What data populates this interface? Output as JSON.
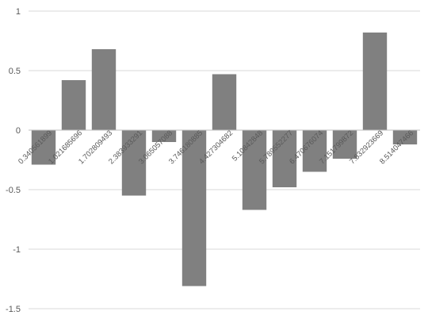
{
  "chart_data": {
    "type": "bar",
    "title": "",
    "xlabel": "",
    "ylabel": "",
    "categories": [
      "0.340561899",
      "1.021685696",
      "1.702809493",
      "2.38393329",
      "3.065057087",
      "3.746180884",
      "4.427304682",
      "5.108428479",
      "5.789552276",
      "6.470676073",
      "7.15179987",
      "7.832923667",
      "8.514047464"
    ],
    "category_labels": [
      "0.340561899",
      "1.021685696",
      "1.702809493",
      "2.383933291",
      "3.065057088",
      "3.746180885",
      "4.427304682",
      "5.10842848",
      "5.789552277",
      "6.470676074",
      "7.151799872",
      "7.832923669",
      "8.514047466"
    ],
    "values": [
      -0.29,
      0.42,
      0.68,
      -0.55,
      -0.1,
      -1.31,
      0.47,
      -0.67,
      -0.48,
      -0.35,
      -0.24,
      0.82,
      -0.12
    ],
    "ylim": [
      -1.5,
      1
    ],
    "yticks": [
      1,
      0.5,
      0,
      -0.5,
      -1,
      -1.5
    ],
    "ytick_labels": [
      "1",
      "0.5",
      "0",
      "-0.5",
      "-1",
      "-1.5"
    ],
    "grid": true,
    "legend": "none",
    "bar_color": "#808080",
    "grid_color": "#d9d9d9",
    "label_color": "#595959"
  }
}
